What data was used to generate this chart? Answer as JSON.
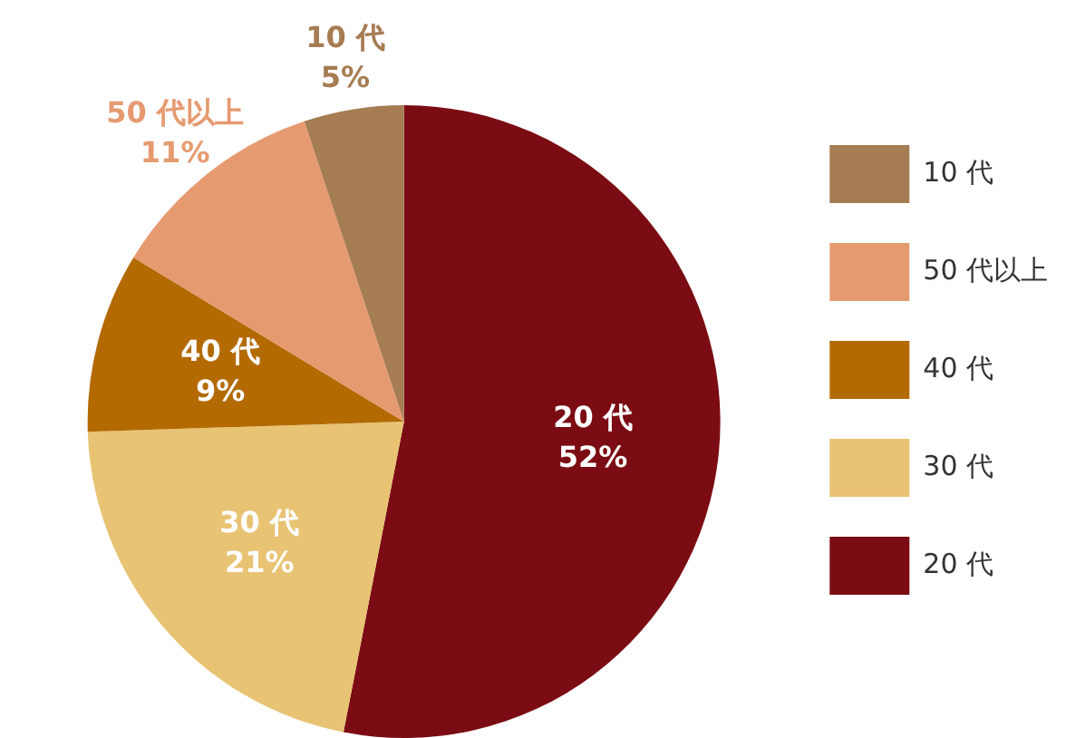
{
  "chart_data": {
    "type": "pie",
    "categories": [
      "20 代",
      "30 代",
      "40 代",
      "50 代以上",
      "10 代"
    ],
    "values": [
      52,
      21,
      9,
      11,
      5
    ],
    "colors": [
      "#7b0c13",
      "#e8c373",
      "#b36a00",
      "#e69a70",
      "#a67c52"
    ],
    "value_labels": [
      "52%",
      "21%",
      "9%",
      "11%",
      "5%"
    ],
    "legend": "right"
  }
}
